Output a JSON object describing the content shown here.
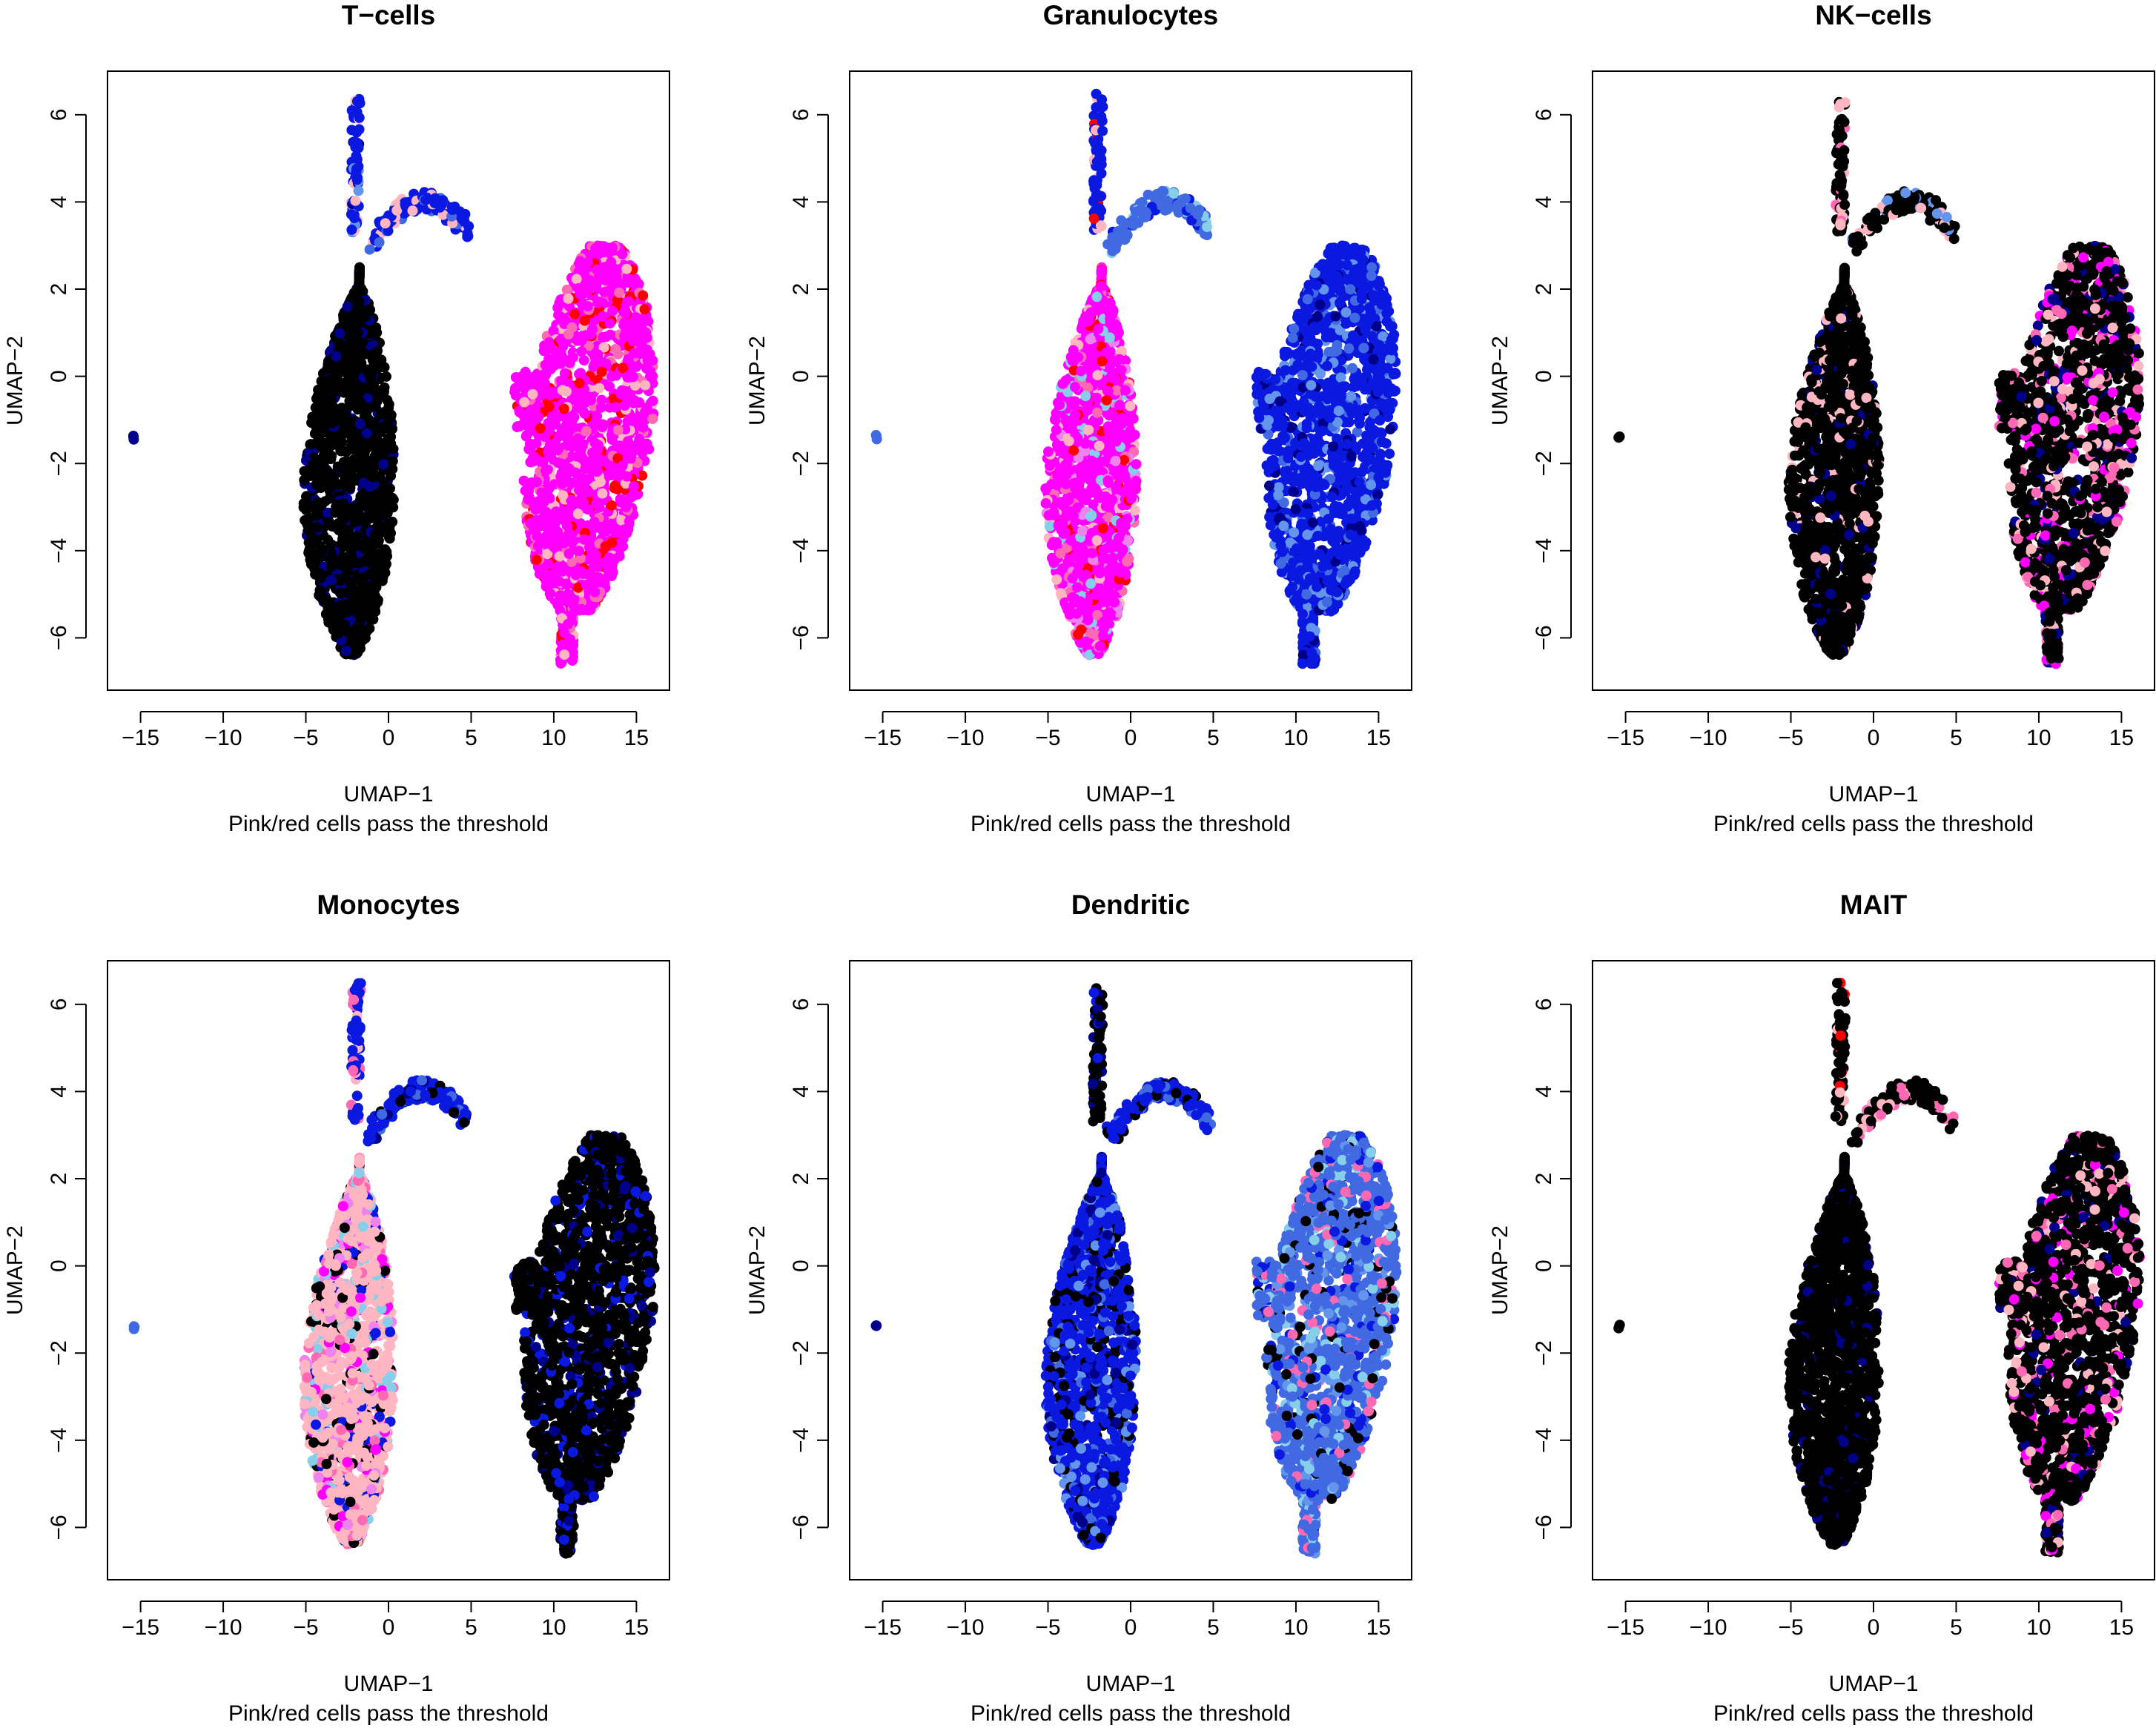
{
  "figure": {
    "xlabel": "UMAP−1",
    "ylabel": "UMAP−2",
    "caption": "Pink/red cells pass the threshold",
    "legend": "none",
    "grid": false
  },
  "palette": {
    "black": "#000000",
    "navy": "#00008b",
    "blue": "#0a18e0",
    "royalblue": "#4169e1",
    "cornflower": "#6495ed",
    "skyblue": "#87ceeb",
    "lightpink": "#ffb6c1",
    "hotpink": "#ff69b4",
    "orchid": "#ee82ee",
    "magenta": "#ff00ff",
    "red": "#ff0000"
  },
  "chart_data": [
    {
      "type": "scatter",
      "title": "T−cells",
      "xlabel": "UMAP−1",
      "ylabel": "UMAP−2",
      "subtitle": "Pink/red cells pass the threshold",
      "xlim": [
        -17,
        17
      ],
      "ylim": [
        -7.2,
        7.0
      ],
      "xticks": [
        -15,
        -10,
        -5,
        0,
        5,
        10,
        15
      ],
      "yticks": [
        -6,
        -4,
        -2,
        0,
        2,
        4,
        6
      ],
      "regions": {
        "left": "black",
        "right": "magenta",
        "stem": "blue",
        "arm": "blue",
        "dot": "navy"
      },
      "mix": {
        "left": [
          "black",
          "black",
          "black",
          "navy",
          "black"
        ],
        "right": [
          "magenta",
          "magenta",
          "hotpink",
          "magenta",
          "red",
          "lightpink"
        ],
        "stem": [
          "cornflower",
          "lightpink",
          "navy"
        ],
        "arm": [
          "blue",
          "lightpink",
          "royalblue"
        ]
      }
    },
    {
      "type": "scatter",
      "title": "Granulocytes",
      "xlabel": "UMAP−1",
      "ylabel": "UMAP−2",
      "subtitle": "Pink/red cells pass the threshold",
      "xlim": [
        -17,
        17
      ],
      "ylim": [
        -7.2,
        7.0
      ],
      "xticks": [
        -15,
        -10,
        -5,
        0,
        5,
        10,
        15
      ],
      "yticks": [
        -6,
        -4,
        -2,
        0,
        2,
        4,
        6
      ],
      "regions": {
        "left": "magenta",
        "right": "blue",
        "stem": "blue",
        "arm": "royalblue",
        "dot": "royalblue"
      },
      "mix": {
        "left": [
          "magenta",
          "lightpink",
          "skyblue",
          "hotpink",
          "magenta",
          "orchid",
          "red"
        ],
        "right": [
          "blue",
          "blue",
          "royalblue",
          "cornflower",
          "navy"
        ],
        "stem": [
          "blue",
          "red",
          "lightpink"
        ],
        "arm": [
          "skyblue",
          "royalblue",
          "blue"
        ]
      }
    },
    {
      "type": "scatter",
      "title": "NK−cells",
      "xlabel": "UMAP−1",
      "ylabel": "UMAP−2",
      "subtitle": "Pink/red cells pass the threshold",
      "xlim": [
        -17,
        17
      ],
      "ylim": [
        -7.2,
        7.0
      ],
      "xticks": [
        -15,
        -10,
        -5,
        0,
        5,
        10,
        15
      ],
      "yticks": [
        -6,
        -4,
        -2,
        0,
        2,
        4,
        6
      ],
      "regions": {
        "left": "black",
        "right": "black",
        "stem": "black",
        "arm": "black",
        "dot": "black"
      },
      "mix": {
        "left": [
          "black",
          "black",
          "black",
          "black",
          "lightpink",
          "navy"
        ],
        "right": [
          "black",
          "black",
          "hotpink",
          "lightpink",
          "navy",
          "magenta"
        ],
        "stem": [
          "black",
          "hotpink",
          "lightpink"
        ],
        "arm": [
          "lightpink",
          "black",
          "cornflower"
        ]
      }
    },
    {
      "type": "scatter",
      "title": "Monocytes",
      "xlabel": "UMAP−1",
      "ylabel": "UMAP−2",
      "subtitle": "Pink/red cells pass the threshold",
      "xlim": [
        -17,
        17
      ],
      "ylim": [
        -7.2,
        7.0
      ],
      "xticks": [
        -15,
        -10,
        -5,
        0,
        5,
        10,
        15
      ],
      "yticks": [
        -6,
        -4,
        -2,
        0,
        2,
        4,
        6
      ],
      "regions": {
        "left": "lightpink",
        "right": "black",
        "stem": "blue",
        "arm": "blue",
        "dot": "royalblue"
      },
      "mix": {
        "left": [
          "lightpink",
          "hotpink",
          "skyblue",
          "magenta",
          "blue",
          "black",
          "orchid"
        ],
        "right": [
          "black",
          "black",
          "navy",
          "blue",
          "black"
        ],
        "stem": [
          "blue",
          "hotpink",
          "lightpink"
        ],
        "arm": [
          "blue",
          "navy",
          "royalblue",
          "black"
        ]
      }
    },
    {
      "type": "scatter",
      "title": "Dendritic",
      "xlabel": "UMAP−1",
      "ylabel": "UMAP−2",
      "subtitle": "Pink/red cells pass the threshold",
      "xlim": [
        -17,
        17
      ],
      "ylim": [
        -7.2,
        7.0
      ],
      "xticks": [
        -15,
        -10,
        -5,
        0,
        5,
        10,
        15
      ],
      "yticks": [
        -6,
        -4,
        -2,
        0,
        2,
        4,
        6
      ],
      "regions": {
        "left": "blue",
        "right": "royalblue",
        "stem": "black",
        "arm": "blue",
        "dot": "navy"
      },
      "mix": {
        "left": [
          "blue",
          "black",
          "navy",
          "royalblue",
          "black",
          "cornflower"
        ],
        "right": [
          "royalblue",
          "blue",
          "skyblue",
          "black",
          "cornflower",
          "hotpink"
        ],
        "stem": [
          "black",
          "blue",
          "navy"
        ],
        "arm": [
          "blue",
          "royalblue",
          "black"
        ]
      }
    },
    {
      "type": "scatter",
      "title": "MAIT",
      "xlabel": "UMAP−1",
      "ylabel": "UMAP−2",
      "subtitle": "Pink/red cells pass the threshold",
      "xlim": [
        -17,
        17
      ],
      "ylim": [
        -7.2,
        7.0
      ],
      "xticks": [
        -15,
        -10,
        -5,
        0,
        5,
        10,
        15
      ],
      "yticks": [
        -6,
        -4,
        -2,
        0,
        2,
        4,
        6
      ],
      "regions": {
        "left": "black",
        "right": "black",
        "stem": "black",
        "arm": "black",
        "dot": "black"
      },
      "mix": {
        "left": [
          "black",
          "black",
          "black",
          "black",
          "black",
          "navy"
        ],
        "right": [
          "black",
          "black",
          "hotpink",
          "lightpink",
          "navy",
          "black",
          "magenta"
        ],
        "stem": [
          "black",
          "red",
          "lightpink"
        ],
        "arm": [
          "black",
          "lightpink",
          "hotpink"
        ]
      }
    }
  ]
}
